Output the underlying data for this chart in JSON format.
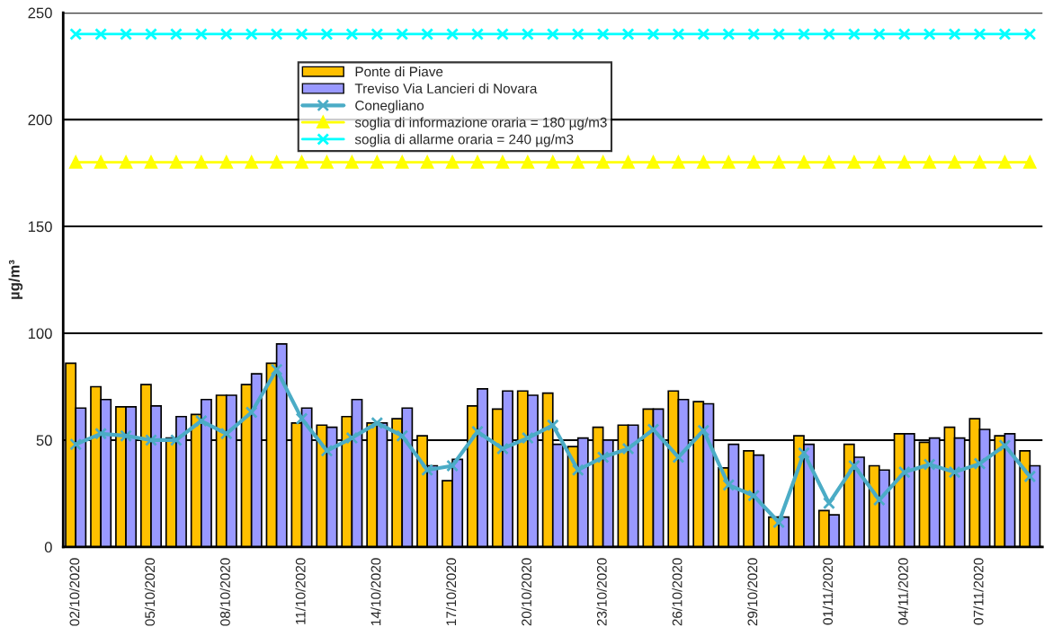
{
  "chart_data": {
    "type": "bar",
    "categories": [
      "02/10/2020",
      null,
      null,
      "05/10/2020",
      null,
      null,
      "08/10/2020",
      null,
      null,
      "11/10/2020",
      null,
      null,
      "14/10/2020",
      null,
      null,
      "17/10/2020",
      null,
      null,
      "20/10/2020",
      null,
      null,
      "23/10/2020",
      null,
      null,
      "26/10/2020",
      null,
      null,
      "29/10/2020",
      null,
      null,
      "01/11/2020",
      null,
      null,
      "04/11/2020",
      null,
      null,
      "07/11/2020",
      null,
      null
    ],
    "ylabel": "µg/m³",
    "ylim": [
      0,
      250
    ],
    "yticks": [
      0,
      50,
      100,
      150,
      200,
      250
    ],
    "grid": "y",
    "legend": "top",
    "series": [
      {
        "name": "Ponte di Piave",
        "color": "#ffc000",
        "values": [
          86,
          75,
          65.6,
          76,
          51,
          62,
          71,
          76,
          86,
          58,
          57,
          61,
          58,
          60,
          52,
          31,
          66,
          64.5,
          73,
          72,
          47,
          56,
          57,
          64.5,
          73,
          68,
          37,
          45,
          14,
          52,
          17,
          48,
          38,
          53,
          49,
          56,
          60,
          52,
          45
        ]
      },
      {
        "name": "Treviso Via Lancieri di Novara",
        "color": "#9999ff",
        "values": [
          65,
          69,
          65.6,
          66,
          61,
          69,
          71,
          81,
          95,
          65,
          56,
          69,
          58,
          65,
          38,
          41,
          74,
          73,
          71,
          48,
          51,
          50,
          57,
          64.5,
          69,
          67,
          48,
          43,
          14,
          48,
          15,
          42,
          36,
          53,
          51,
          51,
          55,
          53,
          38
        ]
      },
      {
        "name": "Conegliano",
        "type": "line",
        "color": "#4bacc6",
        "marker": "cross",
        "line_style": "solid",
        "values": [
          48,
          53,
          52,
          50,
          50,
          59,
          53,
          63,
          83,
          60,
          45,
          51,
          58,
          52,
          36,
          38,
          54,
          46,
          51,
          57,
          36,
          42,
          46,
          55,
          42,
          54.5,
          29,
          24,
          11.5,
          44,
          20.5,
          38,
          22,
          35,
          38.6,
          35,
          39,
          47.5,
          33
        ]
      },
      {
        "name": "soglia di informazione oraria = 180 µg/m3",
        "type": "line",
        "color": "#ffff00",
        "marker": "triangle",
        "line_style": "solid",
        "values": [
          180,
          180,
          180,
          180,
          180,
          180,
          180,
          180,
          180,
          180,
          180,
          180,
          180,
          180,
          180,
          180,
          180,
          180,
          180,
          180,
          180,
          180,
          180,
          180,
          180,
          180,
          180,
          180,
          180,
          180,
          180,
          180,
          180,
          180,
          180,
          180,
          180,
          180,
          180
        ]
      },
      {
        "name": "soglia di allarme oraria = 240 µg/m3",
        "type": "line",
        "color": "#00ffff",
        "marker": "cross",
        "line_style": "solid",
        "values": [
          240,
          240,
          240,
          240,
          240,
          240,
          240,
          240,
          240,
          240,
          240,
          240,
          240,
          240,
          240,
          240,
          240,
          240,
          240,
          240,
          240,
          240,
          240,
          240,
          240,
          240,
          240,
          240,
          240,
          240,
          240,
          240,
          240,
          240,
          240,
          240,
          240,
          240,
          240
        ]
      }
    ]
  }
}
